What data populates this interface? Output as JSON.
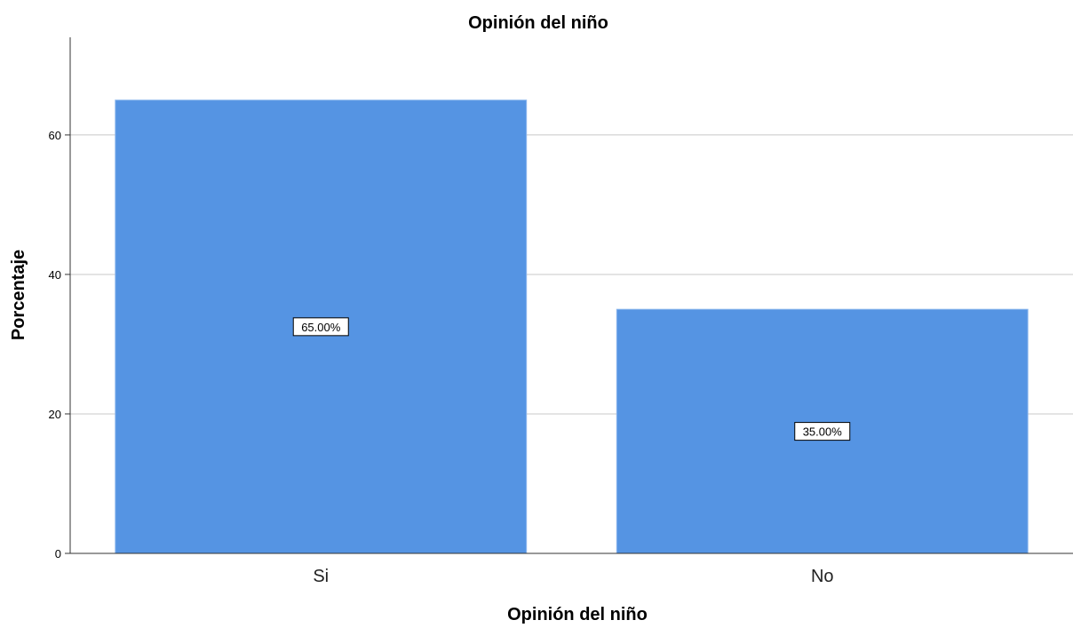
{
  "chart_data": {
    "type": "bar",
    "title": "Opinión del niño",
    "xlabel": "Opinión del niño",
    "ylabel": "Porcentaje",
    "categories": [
      "Si",
      "No"
    ],
    "values": [
      65,
      35
    ],
    "data_labels": [
      "65.00%",
      "35.00%"
    ],
    "yticks": [
      0,
      20,
      40,
      60
    ],
    "ylim": [
      0,
      74
    ],
    "grid": "horizontal",
    "bar_color": "#5594E3",
    "bar_edge_color": "#8EB8EE"
  }
}
